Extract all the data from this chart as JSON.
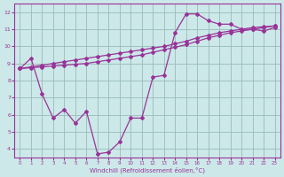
{
  "xlabel": "Windchill (Refroidissement éolien,°C)",
  "bg_color": "#cce8e8",
  "line_color": "#993399",
  "grid_color": "#99bbbb",
  "xlim": [
    -0.5,
    23.5
  ],
  "ylim": [
    3.5,
    12.5
  ],
  "xticks": [
    0,
    1,
    2,
    3,
    4,
    5,
    6,
    7,
    8,
    9,
    10,
    11,
    12,
    13,
    14,
    15,
    16,
    17,
    18,
    19,
    20,
    21,
    22,
    23
  ],
  "yticks": [
    4,
    5,
    6,
    7,
    8,
    9,
    10,
    11,
    12
  ],
  "line1_x": [
    0,
    1,
    2,
    3,
    4,
    5,
    6,
    7,
    8,
    9,
    10,
    11,
    12,
    13,
    14,
    15,
    16,
    17,
    18,
    19,
    20,
    21,
    22,
    23
  ],
  "line1_y": [
    8.7,
    9.3,
    7.2,
    5.8,
    6.3,
    5.5,
    6.2,
    3.7,
    3.8,
    4.4,
    5.8,
    5.8,
    8.2,
    8.3,
    10.8,
    11.9,
    11.9,
    11.5,
    11.3,
    11.3,
    11.0,
    11.0,
    10.9,
    11.1
  ],
  "line2_x": [
    0,
    1,
    2,
    3,
    4,
    5,
    6,
    7,
    8,
    9,
    10,
    11,
    12,
    13,
    14,
    15,
    16,
    17,
    18,
    19,
    20,
    21,
    22,
    23
  ],
  "line2_y": [
    8.7,
    8.75,
    8.8,
    8.85,
    8.9,
    8.95,
    9.0,
    9.1,
    9.2,
    9.3,
    9.4,
    9.5,
    9.65,
    9.8,
    9.95,
    10.1,
    10.3,
    10.5,
    10.65,
    10.8,
    10.9,
    11.0,
    11.1,
    11.2
  ],
  "line3_x": [
    0,
    1,
    2,
    3,
    4,
    5,
    6,
    7,
    8,
    9,
    10,
    11,
    12,
    13,
    14,
    15,
    16,
    17,
    18,
    19,
    20,
    21,
    22,
    23
  ],
  "line3_y": [
    8.7,
    8.8,
    8.9,
    9.0,
    9.1,
    9.2,
    9.3,
    9.4,
    9.5,
    9.6,
    9.7,
    9.8,
    9.9,
    10.0,
    10.15,
    10.3,
    10.5,
    10.65,
    10.8,
    10.9,
    11.0,
    11.1,
    11.15,
    11.2
  ]
}
